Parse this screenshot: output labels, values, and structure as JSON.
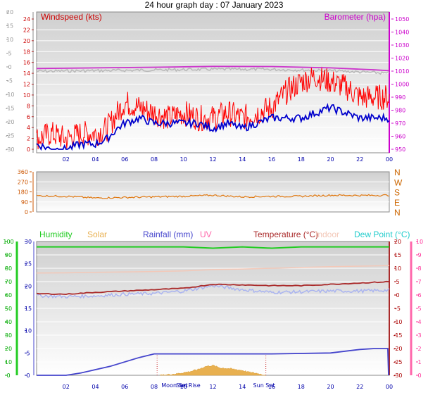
{
  "title": "24 hour graph day : 07 January 2023",
  "colors": {
    "wind_avg": "#0000cc",
    "wind_gust": "#ff0000",
    "baro": "#cc33cc",
    "baro_shadow": "#b8b8b8",
    "dir": "#e07810",
    "temp": "#aa2a2a",
    "indoor": "#f3c8b8",
    "dew": "#aab4f0",
    "humidity": "#22cc22",
    "rain": "#4444cc",
    "solar": "#e8b050",
    "uv": "#ff66aa",
    "axis_left": "#cc0000",
    "axis_right": "#cc00cc"
  },
  "x_ticks": [
    "02",
    "04",
    "06",
    "08",
    "10",
    "12",
    "14",
    "16",
    "18",
    "20",
    "22",
    "00"
  ],
  "chart_data": [
    {
      "type": "line",
      "name": "wind-baro",
      "labels": {
        "left": "Windspeed (kts)",
        "right": "Barometer (hpa)"
      },
      "outer_ticks": [
        "20",
        "15",
        "10",
        "5",
        "0",
        "-5",
        "-10",
        "-15",
        "-20",
        "-25",
        "-30"
      ],
      "left_ticks": [
        "24",
        "22",
        "20",
        "18",
        "16",
        "14",
        "12",
        "10",
        "8",
        "6",
        "4",
        "2",
        "0"
      ],
      "right_ticks": [
        "1050",
        "1040",
        "1030",
        "1020",
        "1010",
        "1000",
        "990",
        "980",
        "970",
        "960",
        "950"
      ],
      "x_hours": [
        0,
        1,
        2,
        3,
        4,
        4.8,
        5.5,
        6,
        7,
        8,
        9,
        10,
        11,
        12,
        13,
        14,
        15,
        16,
        17,
        18,
        19,
        20,
        21,
        22,
        23,
        23.9
      ],
      "gust": [
        2,
        3,
        2,
        3,
        3,
        4,
        7,
        9,
        8,
        7,
        6,
        7,
        6,
        6,
        7,
        6,
        7,
        8,
        11,
        13,
        14,
        13,
        12,
        10,
        10,
        10
      ],
      "avg": [
        1,
        0,
        0,
        1,
        1,
        2,
        4,
        5,
        6,
        5,
        5,
        5,
        5,
        4,
        5,
        4,
        5,
        6,
        6,
        6,
        7,
        8,
        7,
        6,
        6,
        6
      ],
      "baro_x": [
        0,
        4,
        8,
        12,
        16,
        20,
        23,
        24
      ],
      "baro": [
        1012.0,
        1012.5,
        1013.0,
        1013.6,
        1013.5,
        1012.5,
        1011.0,
        1010.3
      ],
      "wind_range": [
        0,
        25
      ],
      "baro_range": [
        950,
        1050
      ]
    },
    {
      "type": "line",
      "name": "wind-direction",
      "left_ticks": [
        "360",
        "270",
        "180",
        "90",
        "0"
      ],
      "compass": [
        "N",
        "W",
        "S",
        "E",
        "N"
      ],
      "x_hours": [
        0,
        2,
        4,
        6,
        8,
        10,
        12,
        14,
        16,
        18,
        20,
        22,
        24
      ],
      "direction": [
        145,
        140,
        125,
        130,
        135,
        140,
        150,
        135,
        140,
        140,
        150,
        148,
        150
      ],
      "range": [
        0,
        360
      ]
    },
    {
      "type": "line",
      "name": "temperature-humidity-rain",
      "legend": [
        "Humidity",
        "Solar",
        "Rainfall (mm)",
        "UV",
        "Temperature (°C)",
        "Indoor",
        "Dew Point (°C)"
      ],
      "humidity_ticks": [
        "100",
        "90",
        "80",
        "70",
        "60",
        "50",
        "40",
        "30",
        "20",
        "10",
        "0"
      ],
      "rain_ticks": [
        "30",
        "25",
        "20",
        "15",
        "10",
        "5",
        "0"
      ],
      "temp_ticks": [
        "20",
        "15",
        "10",
        "5",
        "0",
        "-5",
        "-10",
        "-15",
        "-20",
        "-25",
        "-30"
      ],
      "uv_ticks": [
        "10",
        "9",
        "8",
        "7",
        "6",
        "5",
        "4",
        "3",
        "2",
        "1",
        "0"
      ],
      "moon_set": "Moon Set",
      "sun_rise": "Sun Rise",
      "sun_set": "Sun Set",
      "x_hours": [
        0,
        2,
        4,
        6,
        8,
        10,
        12,
        14,
        16,
        18,
        20,
        22,
        24
      ],
      "temperature": [
        0.5,
        0.3,
        1.0,
        1.5,
        2.0,
        2.5,
        4.0,
        3.8,
        3.5,
        3.5,
        4.0,
        4.5,
        5.0
      ],
      "indoor": [
        8.2,
        8.3,
        8.5,
        8.6,
        8.8,
        9.0,
        9.5,
        9.7,
        10.0,
        10.3,
        10.6,
        10.8,
        11.0
      ],
      "dewpoint": [
        -0.2,
        -0.6,
        -0.3,
        0.3,
        0.6,
        1.5,
        3.5,
        2.0,
        1.0,
        1.2,
        1.5,
        1.5,
        1.8
      ],
      "humidity": [
        96,
        96,
        96,
        96,
        96,
        96,
        95,
        96,
        95,
        96,
        96,
        96,
        96
      ],
      "rain_x": [
        0,
        2,
        3,
        5,
        7,
        8,
        12,
        16,
        20,
        22,
        23,
        23.9
      ],
      "rain": [
        0,
        0,
        0.5,
        2.0,
        4.0,
        4.8,
        4.8,
        4.8,
        5.0,
        5.8,
        6.0,
        6.0
      ],
      "solar_x": [
        8.4,
        9.5,
        10.5,
        11.0,
        11.5,
        12.0,
        12.5,
        13.0,
        13.5,
        14.0,
        14.5,
        15.0,
        15.6
      ],
      "solar": [
        0,
        3,
        8,
        12,
        18,
        20,
        15,
        14,
        12,
        10,
        6,
        4,
        0
      ],
      "humidity_range": [
        0,
        100
      ],
      "rain_range": [
        0,
        30
      ],
      "temp_range": [
        -30,
        20
      ]
    }
  ]
}
